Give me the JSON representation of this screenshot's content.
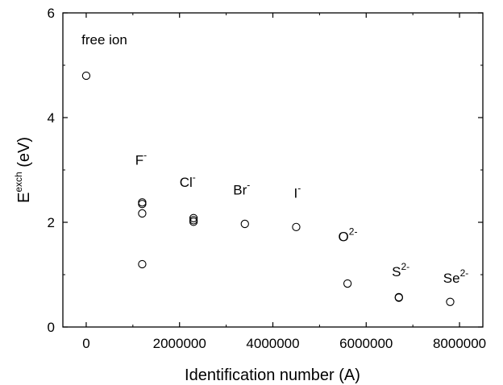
{
  "chart_data": {
    "type": "scatter",
    "xlabel": "Identification number (A)",
    "ylabel": {
      "main": "E",
      "sup": "exch",
      "rest": " (eV)"
    },
    "xlim": [
      -500000,
      8500000
    ],
    "ylim": [
      0,
      6
    ],
    "xticks": [
      0,
      2000000,
      4000000,
      6000000,
      8000000
    ],
    "xtick_labels": [
      "0",
      "2000000",
      "4000000",
      "6000000",
      "8000000"
    ],
    "yticks": [
      0,
      2,
      4,
      6
    ],
    "ytick_labels": [
      "0",
      "2",
      "4",
      "6"
    ],
    "grid": false,
    "marker": "open-circle",
    "series": [
      {
        "points": [
          {
            "x": 0,
            "y": 4.8
          },
          {
            "x": 1200000,
            "y": 2.38
          },
          {
            "x": 1200000,
            "y": 2.35
          },
          {
            "x": 1200000,
            "y": 2.17
          },
          {
            "x": 1200000,
            "y": 1.2
          },
          {
            "x": 2300000,
            "y": 2.08
          },
          {
            "x": 2300000,
            "y": 2.04
          },
          {
            "x": 2300000,
            "y": 2.01
          },
          {
            "x": 3400000,
            "y": 1.97
          },
          {
            "x": 4500000,
            "y": 1.91
          },
          {
            "x": 5600000,
            "y": 0.83
          },
          {
            "x": 6700000,
            "y": 0.57
          },
          {
            "x": 6700000,
            "y": 0.56
          },
          {
            "x": 7800000,
            "y": 0.48
          }
        ]
      }
    ],
    "annotations": [
      {
        "text": "free ion",
        "sup": "",
        "x": -100000,
        "y": 5.4
      },
      {
        "text": "F",
        "sup": "-",
        "x": 1050000,
        "y": 3.1
      },
      {
        "text": "Cl",
        "sup": "-",
        "x": 2000000,
        "y": 2.68
      },
      {
        "text": "Br",
        "sup": "-",
        "x": 3150000,
        "y": 2.53
      },
      {
        "text": "I",
        "sup": "-",
        "x": 4450000,
        "y": 2.47
      },
      {
        "text": "O",
        "sup": "2-",
        "x": 5400000,
        "y": 1.64
      },
      {
        "text": "S",
        "sup": "2-",
        "x": 6550000,
        "y": 0.97
      },
      {
        "text": "Se",
        "sup": "2-",
        "x": 7650000,
        "y": 0.85
      }
    ]
  }
}
